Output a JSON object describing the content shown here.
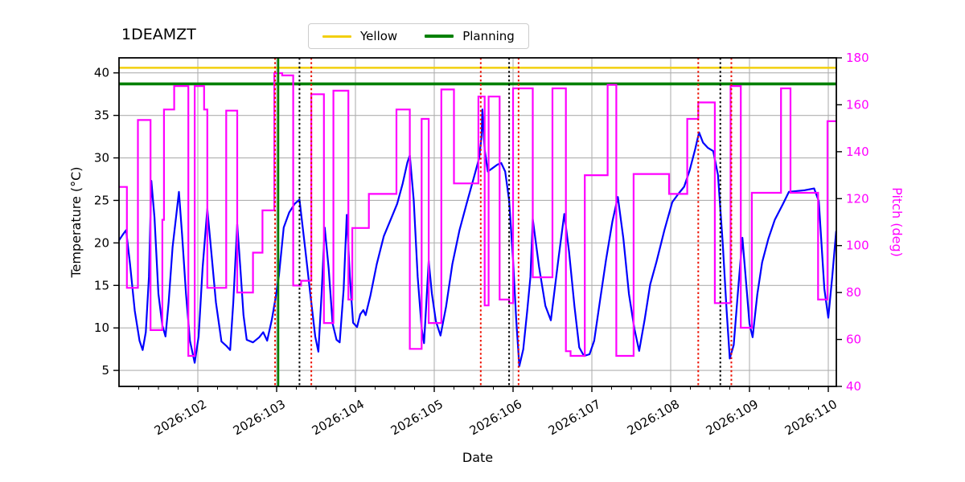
{
  "figure": {
    "title": "1DEAMZT"
  },
  "legend": {
    "entries": [
      {
        "label": "Yellow",
        "color": "#f2cf0e"
      },
      {
        "label": "Planning",
        "color": "#008000"
      }
    ]
  },
  "chart_data": {
    "type": "line",
    "title": "1DEAMZT",
    "xlabel": "Date",
    "ylabel_left": "Temperature (°C)",
    "ylabel_right": "Pitch (deg)",
    "grid": true,
    "legend_position": "upper center",
    "x_axis": {
      "major_ticks": [
        {
          "value": 102,
          "label": "2026:102"
        },
        {
          "value": 103,
          "label": "2026:103"
        },
        {
          "value": 104,
          "label": "2026:104"
        },
        {
          "value": 105,
          "label": "2026:105"
        },
        {
          "value": 106,
          "label": "2026:106"
        },
        {
          "value": 107,
          "label": "2026:107"
        },
        {
          "value": 108,
          "label": "2026:108"
        },
        {
          "value": 109,
          "label": "2026:109"
        },
        {
          "value": 110,
          "label": "2026:110"
        }
      ],
      "minor_tick_step_days": 0.25,
      "range_days": [
        101.0,
        110.1
      ],
      "tick_label_rotation_deg": 30
    },
    "y_left": {
      "ticks": [
        5,
        10,
        15,
        20,
        25,
        30,
        35,
        40
      ],
      "range": [
        3.12,
        41.77
      ],
      "color": "#000000"
    },
    "y_right": {
      "ticks": [
        40,
        60,
        80,
        100,
        120,
        140,
        160,
        180
      ],
      "range": [
        40,
        180
      ],
      "color": "#ff00ff"
    },
    "limit_lines": {
      "yellow": {
        "value": 40.6,
        "color": "#f2cf0e",
        "width": 2.4
      },
      "planning": {
        "value": 38.7,
        "color": "#008000",
        "width": 3.6
      }
    },
    "vertical_lines": {
      "green_solid": {
        "days": [
          103.02
        ],
        "color": "#008000",
        "style": "solid",
        "width": 2.6
      },
      "black_dotted": {
        "days": [
          103.29,
          105.95,
          108.63
        ],
        "color": "#000000",
        "style": "dotted",
        "width": 2.0
      },
      "red_dotted": {
        "days": [
          102.98,
          103.44,
          105.59,
          106.07,
          108.35,
          108.77
        ],
        "color": "#ee1100",
        "style": "dotted",
        "width": 2.0
      }
    },
    "series": [
      {
        "name": "temperature",
        "axis": "left",
        "color": "#0000ff",
        "width": 2.2,
        "interpolation": "linear",
        "points": [
          [
            101.0,
            20.3
          ],
          [
            101.05,
            21.0
          ],
          [
            101.09,
            21.5
          ],
          [
            101.14,
            17.5
          ],
          [
            101.2,
            12.0
          ],
          [
            101.26,
            8.5
          ],
          [
            101.3,
            7.4
          ],
          [
            101.34,
            9.5
          ],
          [
            101.38,
            16.0
          ],
          [
            101.41,
            27.3
          ],
          [
            101.45,
            23.0
          ],
          [
            101.5,
            14.0
          ],
          [
            101.55,
            10.3
          ],
          [
            101.59,
            9.0
          ],
          [
            101.63,
            13.0
          ],
          [
            101.68,
            19.5
          ],
          [
            101.73,
            23.5
          ],
          [
            101.76,
            26.0
          ],
          [
            101.8,
            21.0
          ],
          [
            101.85,
            14.0
          ],
          [
            101.9,
            8.5
          ],
          [
            101.96,
            5.9
          ],
          [
            102.01,
            9.0
          ],
          [
            102.06,
            17.0
          ],
          [
            102.12,
            24.0
          ],
          [
            102.17,
            19.0
          ],
          [
            102.23,
            13.0
          ],
          [
            102.3,
            8.4
          ],
          [
            102.36,
            7.9
          ],
          [
            102.41,
            7.4
          ],
          [
            102.45,
            13.0
          ],
          [
            102.5,
            22.2
          ],
          [
            102.54,
            17.0
          ],
          [
            102.58,
            11.5
          ],
          [
            102.62,
            8.6
          ],
          [
            102.7,
            8.3
          ],
          [
            102.78,
            8.9
          ],
          [
            102.83,
            9.5
          ],
          [
            102.88,
            8.5
          ],
          [
            102.94,
            11.0
          ],
          [
            102.99,
            13.7
          ],
          [
            103.03,
            16.2
          ],
          [
            103.09,
            21.8
          ],
          [
            103.16,
            23.6
          ],
          [
            103.23,
            24.6
          ],
          [
            103.29,
            25.1
          ],
          [
            103.36,
            19.5
          ],
          [
            103.43,
            13.8
          ],
          [
            103.49,
            9.0
          ],
          [
            103.53,
            7.2
          ],
          [
            103.57,
            14.0
          ],
          [
            103.61,
            21.8
          ],
          [
            103.66,
            17.0
          ],
          [
            103.71,
            10.5
          ],
          [
            103.76,
            8.6
          ],
          [
            103.8,
            8.3
          ],
          [
            103.85,
            14.5
          ],
          [
            103.89,
            23.3
          ],
          [
            103.93,
            16.0
          ],
          [
            103.97,
            10.6
          ],
          [
            104.02,
            10.1
          ],
          [
            104.06,
            11.6
          ],
          [
            104.1,
            12.1
          ],
          [
            104.13,
            11.5
          ],
          [
            104.19,
            13.8
          ],
          [
            104.27,
            17.5
          ],
          [
            104.36,
            20.8
          ],
          [
            104.45,
            22.8
          ],
          [
            104.53,
            24.6
          ],
          [
            104.6,
            27.0
          ],
          [
            104.66,
            29.5
          ],
          [
            104.69,
            30.3
          ],
          [
            104.74,
            25.0
          ],
          [
            104.79,
            16.0
          ],
          [
            104.84,
            10.0
          ],
          [
            104.87,
            8.2
          ],
          [
            104.9,
            13.0
          ],
          [
            104.93,
            17.9
          ],
          [
            104.97,
            14.0
          ],
          [
            105.02,
            10.8
          ],
          [
            105.08,
            9.1
          ],
          [
            105.15,
            12.5
          ],
          [
            105.23,
            17.5
          ],
          [
            105.32,
            21.5
          ],
          [
            105.41,
            24.6
          ],
          [
            105.5,
            27.6
          ],
          [
            105.57,
            30.0
          ],
          [
            105.6,
            32.5
          ],
          [
            105.61,
            35.7
          ],
          [
            105.64,
            31.0
          ],
          [
            105.68,
            28.4
          ],
          [
            105.74,
            28.8
          ],
          [
            105.8,
            29.2
          ],
          [
            105.85,
            29.4
          ],
          [
            105.9,
            28.4
          ],
          [
            105.95,
            25.0
          ],
          [
            106.0,
            18.0
          ],
          [
            106.04,
            11.0
          ],
          [
            106.08,
            5.5
          ],
          [
            106.13,
            7.5
          ],
          [
            106.18,
            12.0
          ],
          [
            106.22,
            16.0
          ],
          [
            106.25,
            22.8
          ],
          [
            106.33,
            17.2
          ],
          [
            106.41,
            12.6
          ],
          [
            106.48,
            10.9
          ],
          [
            106.58,
            18.4
          ],
          [
            106.65,
            23.4
          ],
          [
            106.71,
            19.0
          ],
          [
            106.78,
            12.5
          ],
          [
            106.84,
            7.7
          ],
          [
            106.9,
            6.7
          ],
          [
            106.97,
            6.9
          ],
          [
            107.03,
            8.5
          ],
          [
            107.1,
            13.0
          ],
          [
            107.18,
            18.0
          ],
          [
            107.26,
            22.5
          ],
          [
            107.33,
            25.4
          ],
          [
            107.4,
            20.5
          ],
          [
            107.47,
            14.0
          ],
          [
            107.54,
            9.9
          ],
          [
            107.6,
            7.3
          ],
          [
            107.67,
            11.0
          ],
          [
            107.74,
            15.1
          ],
          [
            107.82,
            17.8
          ],
          [
            107.92,
            21.5
          ],
          [
            108.02,
            24.8
          ],
          [
            108.1,
            25.8
          ],
          [
            108.17,
            26.6
          ],
          [
            108.24,
            28.5
          ],
          [
            108.31,
            31.0
          ],
          [
            108.36,
            33.0
          ],
          [
            108.41,
            31.8
          ],
          [
            108.47,
            31.2
          ],
          [
            108.54,
            30.8
          ],
          [
            108.6,
            28.0
          ],
          [
            108.66,
            20.0
          ],
          [
            108.71,
            12.0
          ],
          [
            108.75,
            6.4
          ],
          [
            108.8,
            8.0
          ],
          [
            108.86,
            15.0
          ],
          [
            108.91,
            20.6
          ],
          [
            108.96,
            15.0
          ],
          [
            109.0,
            10.5
          ],
          [
            109.04,
            8.9
          ],
          [
            109.1,
            14.0
          ],
          [
            109.16,
            17.7
          ],
          [
            109.24,
            20.5
          ],
          [
            109.32,
            22.7
          ],
          [
            109.42,
            24.5
          ],
          [
            109.5,
            26.0
          ],
          [
            109.6,
            26.1
          ],
          [
            109.7,
            26.2
          ],
          [
            109.82,
            26.4
          ],
          [
            109.88,
            24.9
          ],
          [
            109.95,
            14.6
          ],
          [
            110.0,
            11.2
          ],
          [
            110.05,
            16.0
          ],
          [
            110.1,
            21.4
          ]
        ]
      },
      {
        "name": "pitch",
        "axis": "right",
        "color": "#ff00ff",
        "width": 2.2,
        "interpolation": "step-after",
        "points": [
          [
            101.0,
            125
          ],
          [
            101.1,
            82
          ],
          [
            101.24,
            153.5
          ],
          [
            101.4,
            64
          ],
          [
            101.55,
            111
          ],
          [
            101.57,
            158
          ],
          [
            101.7,
            168
          ],
          [
            101.88,
            53
          ],
          [
            101.96,
            168
          ],
          [
            102.08,
            158
          ],
          [
            102.12,
            82
          ],
          [
            102.36,
            157.5
          ],
          [
            102.5,
            80
          ],
          [
            102.7,
            97
          ],
          [
            102.82,
            115
          ],
          [
            102.97,
            173.5
          ],
          [
            103.07,
            172.5
          ],
          [
            103.21,
            83
          ],
          [
            103.31,
            85
          ],
          [
            103.44,
            164.5
          ],
          [
            103.6,
            67
          ],
          [
            103.72,
            166
          ],
          [
            103.91,
            77
          ],
          [
            103.96,
            107.5
          ],
          [
            104.17,
            122
          ],
          [
            104.52,
            158
          ],
          [
            104.69,
            56
          ],
          [
            104.84,
            154
          ],
          [
            104.93,
            67
          ],
          [
            105.09,
            166.5
          ],
          [
            105.25,
            126.5
          ],
          [
            105.56,
            163.5
          ],
          [
            105.64,
            74.5
          ],
          [
            105.69,
            163.5
          ],
          [
            105.83,
            77
          ],
          [
            105.95,
            75.5
          ],
          [
            106.0,
            167
          ],
          [
            106.25,
            86.5
          ],
          [
            106.5,
            167
          ],
          [
            106.67,
            55
          ],
          [
            106.73,
            53
          ],
          [
            106.91,
            130
          ],
          [
            107.2,
            168.5
          ],
          [
            107.31,
            53
          ],
          [
            107.53,
            130.5
          ],
          [
            107.98,
            122
          ],
          [
            108.21,
            154
          ],
          [
            108.35,
            161
          ],
          [
            108.56,
            75.5
          ],
          [
            108.76,
            168
          ],
          [
            108.89,
            65
          ],
          [
            109.03,
            122.5
          ],
          [
            109.4,
            167
          ],
          [
            109.52,
            122.5
          ],
          [
            109.87,
            77
          ],
          [
            109.99,
            153
          ],
          [
            110.1,
            153
          ]
        ]
      }
    ]
  }
}
